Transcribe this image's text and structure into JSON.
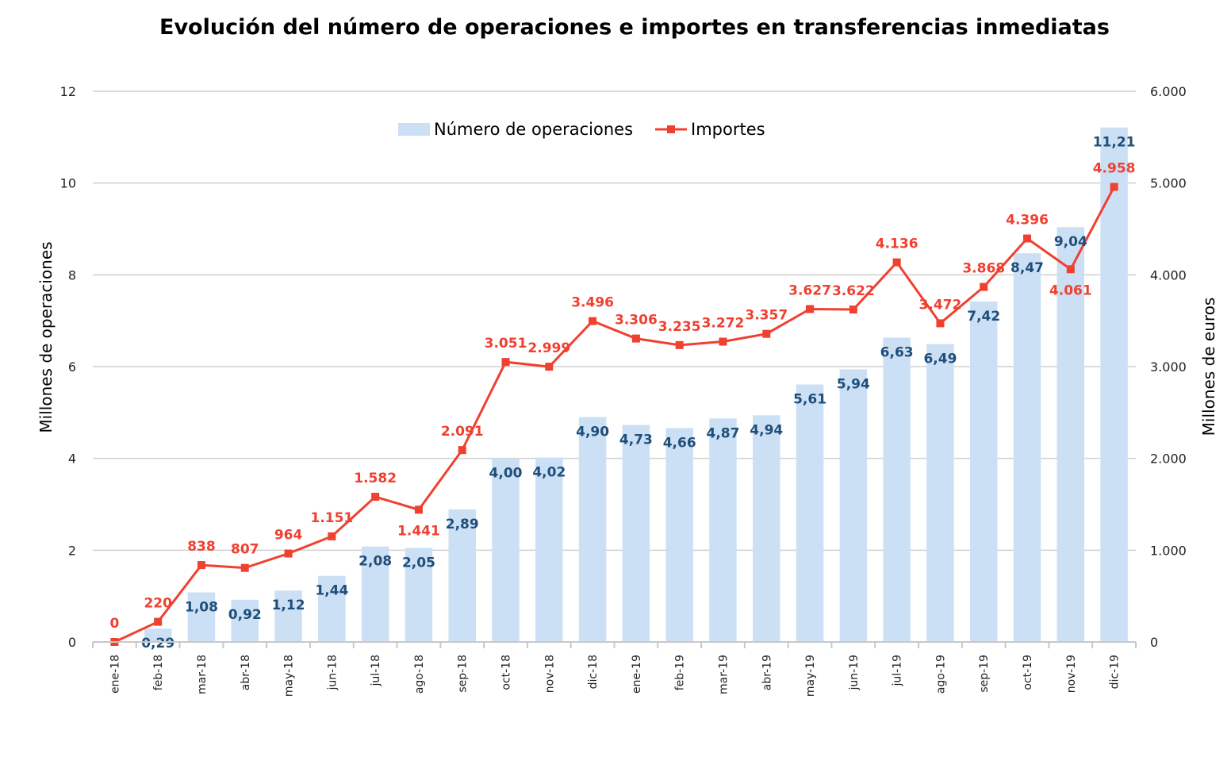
{
  "chart_data": {
    "type": "bar+line",
    "title": "Evolución del número de operaciones e importes en transferencias inmediatas",
    "categories": [
      "ene-18",
      "feb-18",
      "mar-18",
      "abr-18",
      "may-18",
      "jun-18",
      "jul-18",
      "ago-18",
      "sep-18",
      "oct-18",
      "nov-18",
      "dic-18",
      "ene-19",
      "feb-19",
      "mar-19",
      "abr-19",
      "may-19",
      "jun-19",
      "jul-19",
      "ago-19",
      "sep-19",
      "oct-19",
      "nov-19",
      "dic-19"
    ],
    "series": [
      {
        "name": "Número de operaciones",
        "type": "bar",
        "axis": "left",
        "color": "#cce0f5",
        "label_color": "#1f4e79",
        "values": [
          null,
          0.29,
          1.08,
          0.92,
          1.12,
          1.44,
          2.08,
          2.05,
          2.89,
          4.0,
          4.02,
          4.9,
          4.73,
          4.66,
          4.87,
          4.94,
          5.61,
          5.94,
          6.63,
          6.49,
          7.42,
          8.47,
          9.04,
          11.21
        ],
        "labels": [
          "",
          "0,29",
          "1,08",
          "0,92",
          "1,12",
          "1,44",
          "2,08",
          "2,05",
          "2,89",
          "4,00",
          "4,02",
          "4,90",
          "4,73",
          "4,66",
          "4,87",
          "4,94",
          "5,61",
          "5,94",
          "6,63",
          "6,49",
          "7,42",
          "8,47",
          "9,04",
          "11,21"
        ]
      },
      {
        "name": "Importes",
        "type": "line",
        "axis": "right",
        "color": "#f04030",
        "marker": "square",
        "values": [
          0,
          220,
          838,
          807,
          964,
          1151,
          1582,
          1441,
          2091,
          3051,
          2999,
          3496,
          3306,
          3235,
          3272,
          3357,
          3627,
          3622,
          4136,
          3472,
          3868,
          4396,
          4061,
          4958
        ],
        "labels": [
          "0",
          "220",
          "838",
          "807",
          "964",
          "1.151",
          "1.582",
          "1.441",
          "2.091",
          "3.051",
          "2.999",
          "3.496",
          "3.306",
          "3.235",
          "3.272",
          "3.357",
          "3.627",
          "3.622",
          "4.136",
          "3.472",
          "3.868",
          "4.396",
          "4.061",
          "4.958"
        ]
      }
    ],
    "ylabel_left": "Millones de operaciones",
    "ylabel_right": "Millones de euros",
    "ylim_left": [
      0,
      12
    ],
    "ylim_right": [
      0,
      6000
    ],
    "yticks_left": [
      "0",
      "2",
      "4",
      "6",
      "8",
      "10",
      "12"
    ],
    "yticks_right": [
      "0",
      "1.000",
      "2.000",
      "3.000",
      "4.000",
      "5.000",
      "6.000"
    ],
    "grid": true,
    "legend_position": "top-center"
  }
}
